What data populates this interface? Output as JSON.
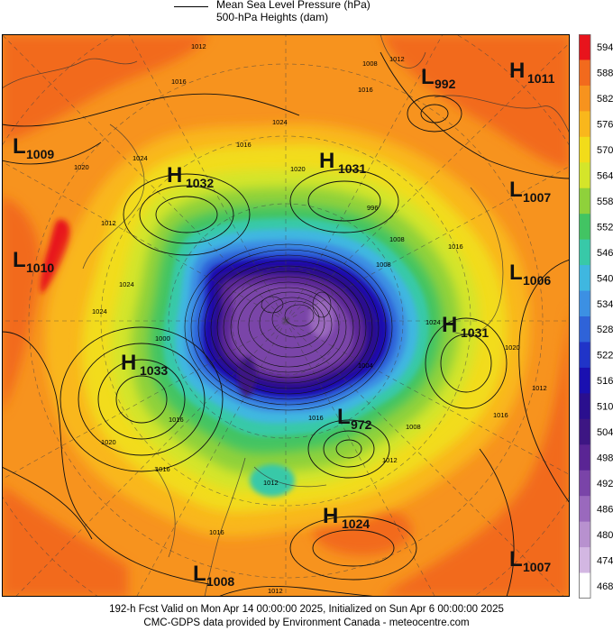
{
  "legend": {
    "mslp_label": "Mean Sea Level Pressure (hPa)",
    "heights_label": "500-hPa Heights (dam)"
  },
  "footer": {
    "line1": "192-h Fcst Valid on Mon Apr 14 00:00:00 2025, Initialized on Sun Apr  6 00:00:00 2025",
    "line2": "CMC-GDPS data provided by Environment Canada - meteocentre.com"
  },
  "colorbar": {
    "levels": [
      "594",
      "588",
      "582",
      "576",
      "570",
      "564",
      "558",
      "552",
      "546",
      "540",
      "534",
      "528",
      "522",
      "516",
      "510",
      "504",
      "498",
      "492",
      "486",
      "480",
      "474",
      "468"
    ],
    "colors": [
      "#e8141c",
      "#f26a1d",
      "#f7931e",
      "#f9b71c",
      "#f2dc1a",
      "#d4e52a",
      "#8fd13b",
      "#42c463",
      "#38c9a8",
      "#3fb7e0",
      "#3c90e3",
      "#2f63d8",
      "#2034c8",
      "#1a10b0",
      "#2a0f8e",
      "#3d1683",
      "#5a2594",
      "#7a44a8",
      "#9a69bd",
      "#b891cf",
      "#d3b7e2",
      "#ffffff"
    ]
  },
  "systems": [
    {
      "type": "L",
      "value": "992"
    },
    {
      "type": "H",
      "value": "1011"
    },
    {
      "type": "L",
      "value": "1009"
    },
    {
      "type": "H",
      "value": "1032"
    },
    {
      "type": "H",
      "value": "1031"
    },
    {
      "type": "L",
      "value": "1007"
    },
    {
      "type": "L",
      "value": "1010"
    },
    {
      "type": "L",
      "value": "1006"
    },
    {
      "type": "H",
      "value": "1031"
    },
    {
      "type": "H",
      "value": "1033"
    },
    {
      "type": "L",
      "value": "972"
    },
    {
      "type": "H",
      "value": "1024"
    },
    {
      "type": "L",
      "value": "1008"
    },
    {
      "type": "L",
      "value": "1007"
    }
  ],
  "isobar_labels": [
    "1012",
    "1008",
    "1016",
    "1012",
    "1024",
    "1020",
    "1024",
    "1016",
    "1016",
    "1020",
    "1012",
    "1008",
    "1016",
    "1024",
    "1020",
    "1016",
    "1012",
    "1008",
    "1016",
    "1020",
    "1016",
    "1012",
    "1016",
    "1012",
    "1016",
    "1012",
    "1024",
    "996",
    "1008",
    "1004",
    "1024",
    "1000"
  ]
}
